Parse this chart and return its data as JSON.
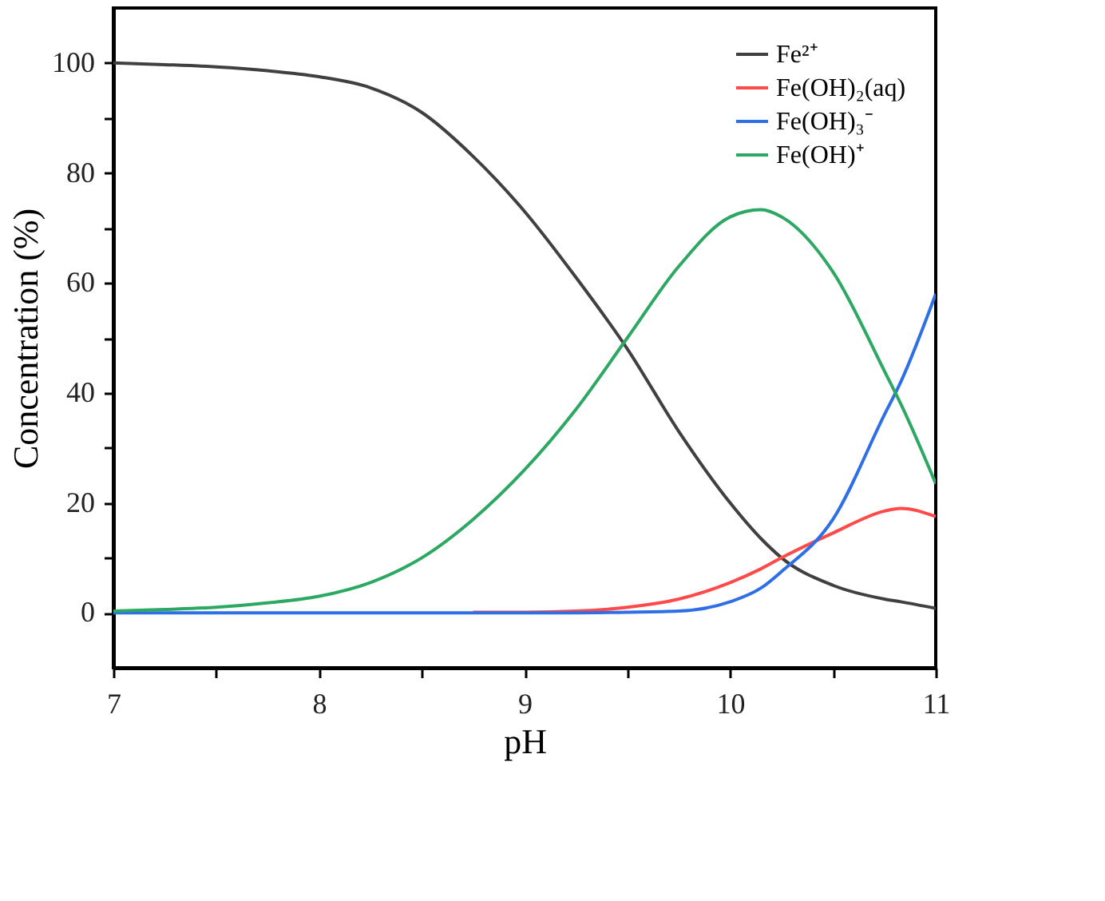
{
  "chart_data": {
    "type": "line",
    "xlabel": "pH",
    "ylabel": "Concentration (%)",
    "xlim": [
      7,
      11
    ],
    "ylim": [
      -10,
      110
    ],
    "xticks": [
      7,
      {
        "value": 7.5,
        "label": null
      },
      8,
      {
        "value": 8.5,
        "label": null
      },
      9,
      {
        "value": 9.5,
        "label": null
      },
      10,
      {
        "value": 10.5,
        "label": null
      },
      11
    ],
    "yticks": [
      0,
      {
        "value": 10,
        "label": null
      },
      20,
      {
        "value": 30,
        "label": null
      },
      40,
      {
        "value": 50,
        "label": null
      },
      60,
      {
        "value": 70,
        "label": null
      },
      80,
      {
        "value": 90,
        "label": null
      },
      100
    ],
    "grid": false,
    "legend": "top right",
    "marker": "none",
    "line_style": "solid",
    "x": [
      7,
      7.25,
      7.5,
      7.75,
      8,
      8.25,
      8.5,
      8.75,
      9,
      9.25,
      9.5,
      9.75,
      10,
      10.15,
      10.25,
      10.5,
      10.75,
      10.83,
      11
    ],
    "series": [
      {
        "name": "Fe²⁺",
        "color": "#404040",
        "values": [
          100,
          99.7,
          99.3,
          98.6,
          97.5,
          95.5,
          91,
          83,
          73,
          61,
          48,
          33,
          20,
          13.5,
          10,
          5,
          2.5,
          2,
          0.8
        ]
      },
      {
        "name": "Fe(OH)₂(aq)",
        "color": "#ff4a4a",
        "values": [
          null,
          null,
          null,
          null,
          null,
          null,
          null,
          0.1,
          0.1,
          0.3,
          1,
          2.5,
          5.5,
          8,
          10,
          14.5,
          18.5,
          19,
          17.5
        ]
      },
      {
        "name": "Fe(OH)₃⁻",
        "color": "#2f6fe6",
        "values": [
          0,
          0,
          0,
          0,
          0,
          0,
          0,
          0,
          0,
          0,
          0.1,
          0.3,
          2,
          4.5,
          7.5,
          17,
          36,
          42,
          58
        ]
      },
      {
        "name": "Fe(OH)⁺",
        "color": "#2ca862",
        "values": [
          0.3,
          0.6,
          1,
          1.8,
          3,
          5.5,
          10,
          17,
          26,
          37,
          50,
          63,
          72,
          73.3,
          72,
          62,
          44,
          38,
          23.5
        ]
      }
    ]
  }
}
